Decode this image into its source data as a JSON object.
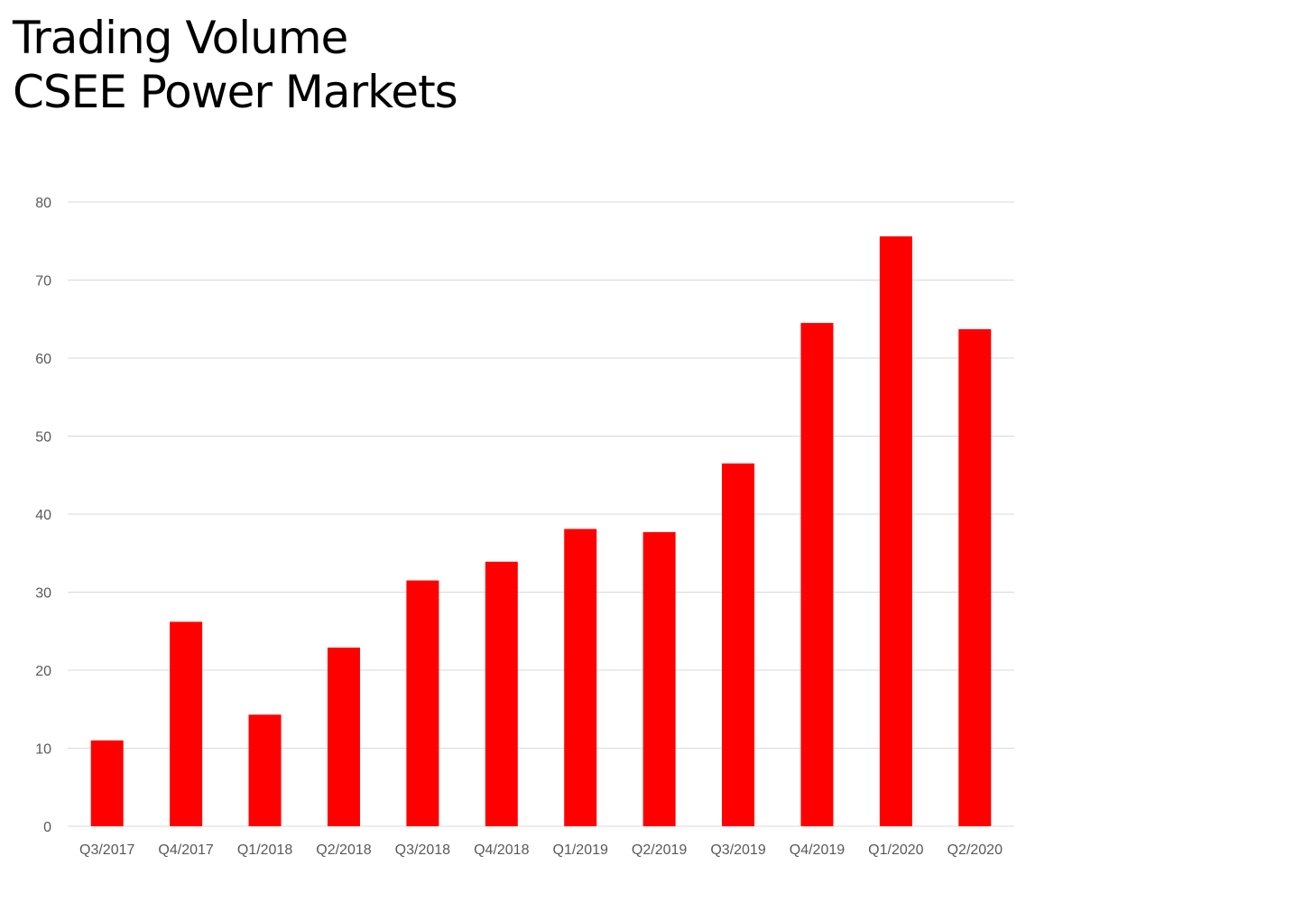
{
  "chart_data": {
    "type": "bar",
    "title": "Trading Volume",
    "subtitle": "CSEE Power Markets",
    "xlabel": "",
    "ylabel": "",
    "categories": [
      "Q3/2017",
      "Q4/2017",
      "Q1/2018",
      "Q2/2018",
      "Q3/2018",
      "Q4/2018",
      "Q1/2019",
      "Q2/2019",
      "Q3/2019",
      "Q4/2019",
      "Q1/2020",
      "Q2/2020"
    ],
    "values": [
      11,
      26.2,
      14.3,
      22.9,
      31.5,
      33.9,
      38.1,
      37.7,
      46.5,
      64.5,
      75.6,
      63.7
    ],
    "ylim": [
      0,
      80
    ],
    "yticks": [
      0,
      10,
      20,
      30,
      40,
      50,
      60,
      70,
      80
    ],
    "grid": true,
    "legend": "none",
    "bar_color": "#ff0000",
    "grid_color": "#d9d9d9"
  }
}
